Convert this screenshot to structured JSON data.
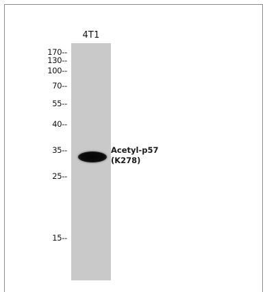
{
  "lane": {
    "label": "4T1"
  },
  "markers": [
    {
      "label": "170--"
    },
    {
      "label": "130--"
    },
    {
      "label": "100--"
    },
    {
      "label": "70--"
    },
    {
      "label": "55--"
    },
    {
      "label": "40--"
    },
    {
      "label": "35--"
    },
    {
      "label": "25--"
    },
    {
      "label": "15--"
    }
  ],
  "target": {
    "line1": "Acetyl-p57",
    "line2": "(K278)"
  },
  "colors": {
    "lane": "#c9c9c9",
    "band": "#0b0b0b",
    "border": "#8a8a8a"
  }
}
